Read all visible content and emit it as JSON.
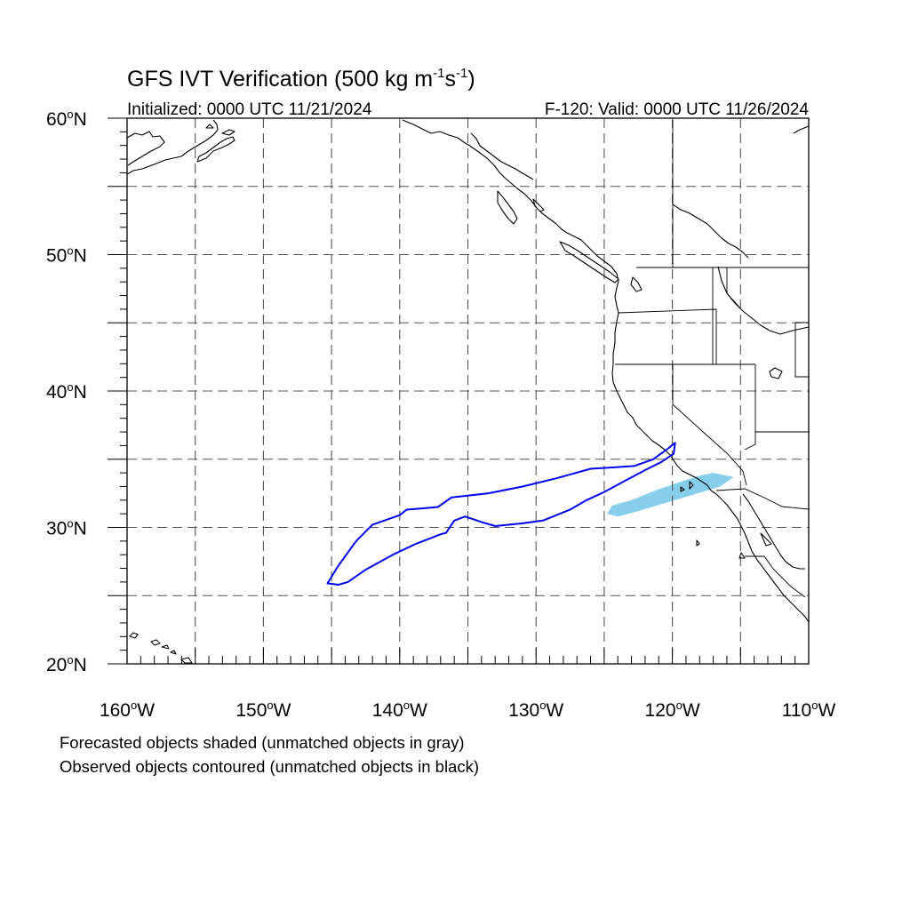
{
  "title": {
    "main": "GFS IVT Verification (500 kg m",
    "exp1": "-1",
    "mid": "s",
    "exp2": "-1",
    "end": ")"
  },
  "subtitle": {
    "left": "Initialized: 0000 UTC 11/21/2024",
    "right": "F-120: Valid: 0000 UTC 11/26/2024"
  },
  "axes": {
    "lon_range": [
      -160,
      -110
    ],
    "lat_range": [
      20,
      60
    ],
    "lon_ticks": [
      {
        "value": -160,
        "label": "160",
        "hemi": "W"
      },
      {
        "value": -150,
        "label": "150",
        "hemi": "W"
      },
      {
        "value": -140,
        "label": "140",
        "hemi": "W"
      },
      {
        "value": -130,
        "label": "130",
        "hemi": "W"
      },
      {
        "value": -120,
        "label": "120",
        "hemi": "W"
      },
      {
        "value": -110,
        "label": "110",
        "hemi": "W"
      }
    ],
    "lat_ticks": [
      {
        "value": 60,
        "label": "60",
        "hemi": "N"
      },
      {
        "value": 50,
        "label": "50",
        "hemi": "N"
      },
      {
        "value": 40,
        "label": "40",
        "hemi": "N"
      },
      {
        "value": 30,
        "label": "30",
        "hemi": "N"
      },
      {
        "value": 20,
        "label": "20",
        "hemi": "N"
      }
    ],
    "degree_symbol": "o",
    "grid_spacing_deg": 5,
    "grid_style": "dashed"
  },
  "objects": {
    "forecast": {
      "description_role": "shaded",
      "color": "#87ceeb",
      "outline": [
        [
          -124.8,
          31.0
        ],
        [
          -124.4,
          31.6
        ],
        [
          -123.0,
          32.0
        ],
        [
          -121.0,
          32.8
        ],
        [
          -119.5,
          33.3
        ],
        [
          -118.0,
          33.8
        ],
        [
          -117.0,
          34.0
        ],
        [
          -115.5,
          33.7
        ],
        [
          -116.5,
          33.0
        ],
        [
          -118.5,
          32.4
        ],
        [
          -120.5,
          31.8
        ],
        [
          -122.5,
          31.2
        ],
        [
          -124.0,
          30.8
        ]
      ]
    },
    "observed": {
      "description_role": "contoured",
      "color": "#0000ee",
      "outline": [
        [
          -145.3,
          25.9
        ],
        [
          -144.5,
          27.2
        ],
        [
          -143.2,
          29.0
        ],
        [
          -142.0,
          30.2
        ],
        [
          -140.0,
          30.9
        ],
        [
          -139.5,
          31.3
        ],
        [
          -138.3,
          31.4
        ],
        [
          -137.2,
          31.5
        ],
        [
          -136.2,
          32.2
        ],
        [
          -133.5,
          32.5
        ],
        [
          -131.0,
          33.0
        ],
        [
          -128.5,
          33.6
        ],
        [
          -126.0,
          34.3
        ],
        [
          -124.4,
          34.4
        ],
        [
          -122.8,
          34.5
        ],
        [
          -121.4,
          35.0
        ],
        [
          -120.3,
          35.8
        ],
        [
          -119.8,
          36.2
        ],
        [
          -119.9,
          35.4
        ],
        [
          -120.8,
          34.8
        ],
        [
          -122.0,
          34.2
        ],
        [
          -123.5,
          33.4
        ],
        [
          -125.0,
          32.6
        ],
        [
          -126.3,
          32.0
        ],
        [
          -127.5,
          31.3
        ],
        [
          -129.5,
          30.5
        ],
        [
          -131.0,
          30.3
        ],
        [
          -133.0,
          30.1
        ],
        [
          -134.0,
          30.4
        ],
        [
          -135.2,
          30.8
        ],
        [
          -136.0,
          30.5
        ],
        [
          -136.6,
          29.6
        ],
        [
          -137.0,
          29.5
        ],
        [
          -137.5,
          29.3
        ],
        [
          -138.8,
          28.8
        ],
        [
          -140.5,
          28.0
        ],
        [
          -142.5,
          26.9
        ],
        [
          -143.8,
          26.0
        ],
        [
          -144.5,
          25.8
        ],
        [
          -145.3,
          25.9
        ]
      ]
    }
  },
  "footnotes": {
    "line1": "Forecasted objects shaded (unmatched objects in gray)",
    "line2": "Observed objects contoured (unmatched objects in black)"
  }
}
